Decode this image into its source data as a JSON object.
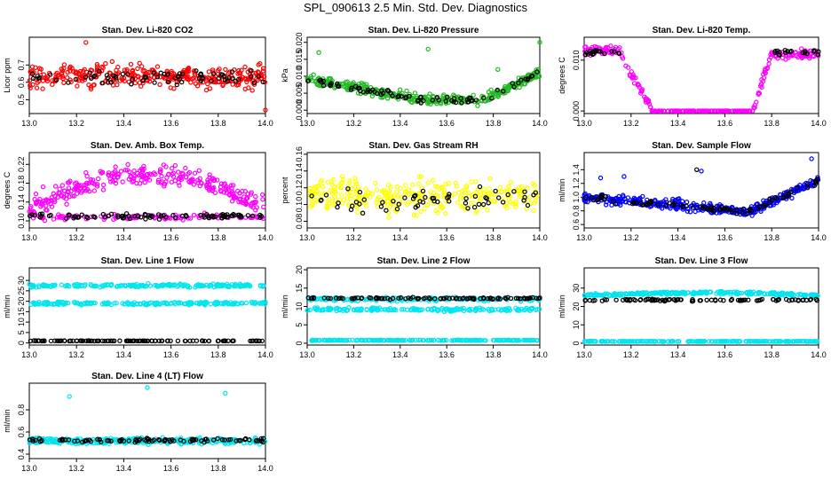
{
  "page_title": "SPL_090613  2.5 Min. Std. Dev. Diagnostics",
  "colors": {
    "black": "#000000",
    "red": "#ff0000",
    "green": "#22bb22",
    "magenta": "#ff00ff",
    "yellow": "#ffff00",
    "blue": "#0000ff",
    "cyan": "#00e5ee"
  },
  "chart_data": [
    {
      "type": "scatter",
      "title": "Stan. Dev. Li-820 CO2",
      "ylabel": "Licor ppm",
      "xlim": [
        13.0,
        14.0
      ],
      "xticks": [
        "13.0",
        "13.2",
        "13.4",
        "13.6",
        "13.8",
        "14.0"
      ],
      "ylim": [
        0.42,
        0.86
      ],
      "yticks": [
        {
          "value": 0.5,
          "label": "0.5"
        },
        {
          "value": 0.6,
          "label": "0.6"
        },
        {
          "value": 0.7,
          "label": "0.7"
        }
      ],
      "series": [
        {
          "color": "red",
          "approx_range": [
            0.5,
            0.78
          ],
          "outliers": [
            [
              13.24,
              0.83
            ],
            [
              14.0,
              0.44
            ]
          ]
        },
        {
          "color": "black",
          "approx_range": [
            0.54,
            0.72
          ]
        }
      ]
    },
    {
      "type": "scatter",
      "title": "Stan. Dev. Li-820 Pressure",
      "ylabel": "kPa",
      "xlim": [
        13.0,
        14.0
      ],
      "xticks": [
        "13.0",
        "13.2",
        "13.4",
        "13.6",
        "13.8",
        "14.0"
      ],
      "ylim": [
        -0.001,
        0.0215
      ],
      "yticks": [
        {
          "value": 0.0,
          "label": "0.000"
        },
        {
          "value": 0.005,
          "label": "0.005"
        },
        {
          "value": 0.01,
          "label": "0.010"
        },
        {
          "value": 0.015,
          "label": "0.015"
        },
        {
          "value": 0.02,
          "label": "0.020"
        }
      ],
      "series": [
        {
          "color": "green",
          "pattern": "u-shaped, ~0.009 at 13.0, ~0.003 near 13.5, ~0.011 at 14.0",
          "outliers": [
            [
              13.05,
              0.017
            ],
            [
              13.52,
              0.018
            ],
            [
              13.82,
              0.012
            ],
            [
              14.0,
              0.02
            ]
          ]
        },
        {
          "color": "black",
          "pattern": "follows green trend"
        }
      ]
    },
    {
      "type": "scatter",
      "title": "Stan. Dev. Li-820 Temp.",
      "ylabel": "degrees C",
      "xlim": [
        13.0,
        14.0
      ],
      "xticks": [
        "13.0",
        "13.2",
        "13.4",
        "13.6",
        "13.8",
        "14.0"
      ],
      "ylim": [
        -0.0005,
        0.0145
      ],
      "yticks": [
        {
          "value": 0.0,
          "label": "0.000"
        },
        {
          "value": 0.01,
          "label": "0.010"
        }
      ],
      "series": [
        {
          "color": "magenta",
          "pattern": "high ~0.012 (13.0-13.15), falls to 0 by 13.28, 0 until 13.72, rises to ~0.012 by 13.8"
        },
        {
          "color": "black",
          "pattern": "follows magenta at high levels"
        }
      ]
    },
    {
      "type": "scatter",
      "title": "Stan. Dev. Amb. Box Temp.",
      "ylabel": "degrees C",
      "xlim": [
        13.0,
        14.0
      ],
      "xticks": [
        "13.0",
        "13.2",
        "13.4",
        "13.6",
        "13.8",
        "14.0"
      ],
      "ylim": [
        0.085,
        0.245
      ],
      "yticks": [
        {
          "value": 0.1,
          "label": "0.10"
        },
        {
          "value": 0.14,
          "label": "0.14"
        },
        {
          "value": 0.18,
          "label": "0.18"
        },
        {
          "value": 0.22,
          "label": "0.22"
        }
      ],
      "series": [
        {
          "color": "magenta",
          "pattern": "arch ~0.13 at ends, ~0.20 near 13.5, plus low band ~0.11"
        },
        {
          "color": "black",
          "approx_range": [
            0.1,
            0.125
          ]
        }
      ]
    },
    {
      "type": "scatter",
      "title": "Stan. Dev. Gas Stream RH",
      "ylabel": "percent",
      "xlim": [
        13.0,
        14.0
      ],
      "xticks": [
        "13.0",
        "13.2",
        "13.4",
        "13.6",
        "13.8",
        "14.0"
      ],
      "ylim": [
        0.072,
        0.162
      ],
      "yticks": [
        {
          "value": 0.08,
          "label": "0.08"
        },
        {
          "value": 0.1,
          "label": "0.10"
        },
        {
          "value": 0.12,
          "label": "0.12"
        },
        {
          "value": 0.14,
          "label": "0.14"
        },
        {
          "value": 0.16,
          "label": "0.16"
        }
      ],
      "series": [
        {
          "color": "yellow",
          "approx_range": [
            0.075,
            0.15
          ]
        },
        {
          "color": "black",
          "approx_range": [
            0.08,
            0.155
          ]
        }
      ]
    },
    {
      "type": "scatter",
      "title": "Stan. Dev. Sample Flow",
      "ylabel": "ml/min",
      "xlim": [
        13.0,
        14.0
      ],
      "xticks": [
        "13.0",
        "13.2",
        "13.4",
        "13.6",
        "13.8",
        "14.0"
      ],
      "ylim": [
        0.55,
        1.65
      ],
      "yticks": [
        {
          "value": 0.6,
          "label": "0.6"
        },
        {
          "value": 0.8,
          "label": "0.8"
        },
        {
          "value": 1.0,
          "label": "1.0"
        },
        {
          "value": 1.2,
          "label": "1.2"
        },
        {
          "value": 1.4,
          "label": "1.4"
        }
      ],
      "series": [
        {
          "color": "blue",
          "pattern": "~1.0 at 13.0 decreasing to ~0.8 by 13.7, rising to ~1.3 at 14.0",
          "outliers": [
            [
              13.07,
              1.28
            ],
            [
              13.17,
              1.3
            ],
            [
              13.5,
              1.38
            ],
            [
              13.97,
              1.56
            ]
          ]
        },
        {
          "color": "black",
          "pattern": "follows blue trend",
          "outliers": [
            [
              13.48,
              1.4
            ]
          ]
        }
      ]
    },
    {
      "type": "scatter",
      "title": "Stan. Dev. Line 1 Flow",
      "ylabel": "ml/min",
      "xlim": [
        13.0,
        14.0
      ],
      "xticks": [
        "13.0",
        "13.2",
        "13.4",
        "13.6",
        "13.8",
        "14.0"
      ],
      "ylim": [
        -1,
        36
      ],
      "yticks": [
        {
          "value": 0,
          "label": "0"
        },
        {
          "value": 5,
          "label": "5"
        },
        {
          "value": 10,
          "label": "10"
        },
        {
          "value": 15,
          "label": "15"
        },
        {
          "value": 20,
          "label": "20"
        },
        {
          "value": 25,
          "label": "25"
        },
        {
          "value": 30,
          "label": "30"
        }
      ],
      "series": [
        {
          "color": "cyan",
          "bands": [
            27,
            19
          ]
        },
        {
          "color": "black",
          "bands": [
            1
          ]
        }
      ]
    },
    {
      "type": "scatter",
      "title": "Stan. Dev. Line 2 Flow",
      "ylabel": "ml/min",
      "xlim": [
        13.0,
        14.0
      ],
      "xticks": [
        "13.0",
        "13.2",
        "13.4",
        "13.6",
        "13.8",
        "14.0"
      ],
      "ylim": [
        -0.5,
        20.5
      ],
      "yticks": [
        {
          "value": 0,
          "label": "0"
        },
        {
          "value": 5,
          "label": "5"
        },
        {
          "value": 10,
          "label": "10"
        },
        {
          "value": 15,
          "label": "15"
        },
        {
          "value": 20,
          "label": "20"
        }
      ],
      "series": [
        {
          "color": "cyan",
          "bands": [
            12,
            9,
            0.8
          ]
        },
        {
          "color": "black",
          "bands": [
            12.2
          ]
        }
      ]
    },
    {
      "type": "scatter",
      "title": "Stan. Dev. Line 3 Flow",
      "ylabel": "ml/min",
      "xlim": [
        13.0,
        14.0
      ],
      "xticks": [
        "13.0",
        "13.2",
        "13.4",
        "13.6",
        "13.8",
        "14.0"
      ],
      "ylim": [
        -1,
        41
      ],
      "yticks": [
        {
          "value": 0,
          "label": "0"
        },
        {
          "value": 10,
          "label": "10"
        },
        {
          "value": 20,
          "label": "20"
        },
        {
          "value": 30,
          "label": "30"
        }
      ],
      "series": [
        {
          "color": "cyan",
          "bands": [
            26,
            1
          ]
        },
        {
          "color": "black",
          "bands": [
            23
          ]
        }
      ]
    },
    {
      "type": "scatter",
      "title": "Stan. Dev. Line 4 (LT) Flow",
      "ylabel": "ml/min",
      "xlim": [
        13.0,
        14.0
      ],
      "xticks": [
        "13.0",
        "13.2",
        "13.4",
        "13.6",
        "13.8",
        "14.0"
      ],
      "ylim": [
        0.36,
        1.04
      ],
      "yticks": [
        {
          "value": 0.4,
          "label": "0.4"
        },
        {
          "value": 0.6,
          "label": "0.6"
        },
        {
          "value": 0.8,
          "label": "0.8"
        }
      ],
      "series": [
        {
          "color": "cyan",
          "approx_range": [
            0.45,
            0.58
          ],
          "outliers": [
            [
              13.17,
              0.92
            ],
            [
              13.5,
              1.0
            ],
            [
              13.83,
              0.95
            ]
          ]
        },
        {
          "color": "black",
          "approx_range": [
            0.48,
            0.57
          ]
        }
      ]
    }
  ]
}
